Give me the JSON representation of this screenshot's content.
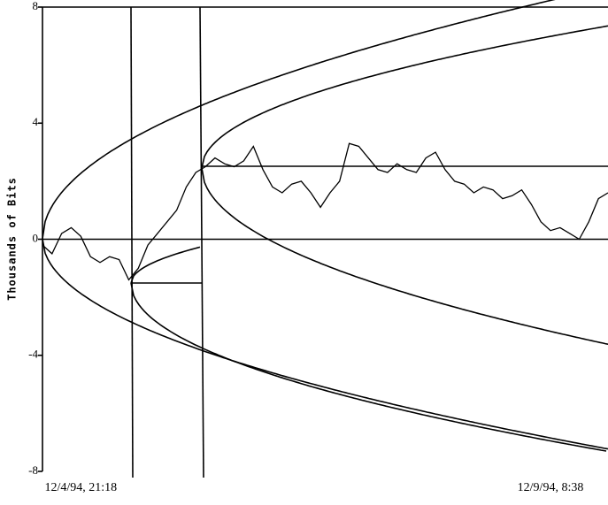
{
  "chart_data": {
    "type": "line",
    "y_label": "Thousands of Bits",
    "categories": [
      null,
      null,
      null,
      null,
      "12/4/94, 21:18",
      null,
      null,
      null,
      null,
      null,
      null,
      null,
      null,
      null,
      null,
      null,
      null,
      null,
      null,
      null,
      null,
      null,
      null,
      null,
      null,
      null,
      null,
      null,
      null,
      null,
      null,
      null,
      null,
      null,
      null,
      null,
      null,
      null,
      null,
      null,
      null,
      null,
      null,
      null,
      null,
      null,
      null,
      null,
      null,
      null,
      null,
      null,
      null,
      "12/9/94, 8:38",
      null,
      null,
      null,
      null,
      null,
      null
    ],
    "series": [
      {
        "color": "#000000",
        "values": [
          -0.2,
          -0.5,
          0.2,
          0.4,
          0.1,
          -0.6,
          -0.8,
          -0.6,
          -0.7,
          -1.4,
          -1.0,
          -0.2,
          0.2,
          0.6,
          1.0,
          1.8,
          2.3,
          2.5,
          2.8,
          2.6,
          2.5,
          2.7,
          3.2,
          2.4,
          1.8,
          1.6,
          1.9,
          2.0,
          1.6,
          1.1,
          1.6,
          2.0,
          3.3,
          3.2,
          2.8,
          2.4,
          2.3,
          2.6,
          2.4,
          2.3,
          2.8,
          3.0,
          2.4,
          2.0,
          1.9,
          1.6,
          1.8,
          1.7,
          1.4,
          1.5,
          1.7,
          1.2,
          0.6,
          0.3,
          0.4,
          0.2,
          0.0,
          0.6,
          1.4,
          1.6
        ]
      }
    ],
    "ylim": [
      -8,
      8
    ],
    "yticks": [
      -8,
      -4,
      0,
      4,
      8
    ]
  }
}
